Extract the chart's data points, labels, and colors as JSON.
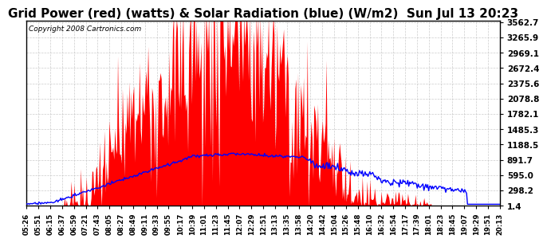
{
  "title": "Grid Power (red) (watts) & Solar Radiation (blue) (W/m2)  Sun Jul 13 20:23",
  "copyright": "Copyright 2008 Cartronics.com",
  "yticks": [
    1.4,
    298.2,
    595.0,
    891.7,
    1188.5,
    1485.3,
    1782.1,
    2078.8,
    2375.6,
    2672.4,
    2969.1,
    3265.9,
    3562.7
  ],
  "ymin": 1.4,
  "ymax": 3562.7,
  "background_color": "#ffffff",
  "plot_bg_color": "#ffffff",
  "grid_color": "#c0c0c0",
  "red_color": "#ff0000",
  "blue_color": "#0000ff",
  "title_fontsize": 11,
  "n_points": 500,
  "xtick_labels": [
    "05:26",
    "05:51",
    "06:15",
    "06:37",
    "06:59",
    "07:21",
    "07:43",
    "08:05",
    "08:27",
    "08:49",
    "09:11",
    "09:33",
    "09:55",
    "10:17",
    "10:39",
    "11:01",
    "11:23",
    "11:45",
    "12:07",
    "12:29",
    "12:51",
    "13:13",
    "13:35",
    "13:58",
    "14:20",
    "14:42",
    "15:04",
    "15:26",
    "15:48",
    "16:10",
    "16:32",
    "16:54",
    "17:17",
    "17:39",
    "18:01",
    "18:23",
    "18:45",
    "19:07",
    "19:29",
    "19:51",
    "20:13"
  ]
}
